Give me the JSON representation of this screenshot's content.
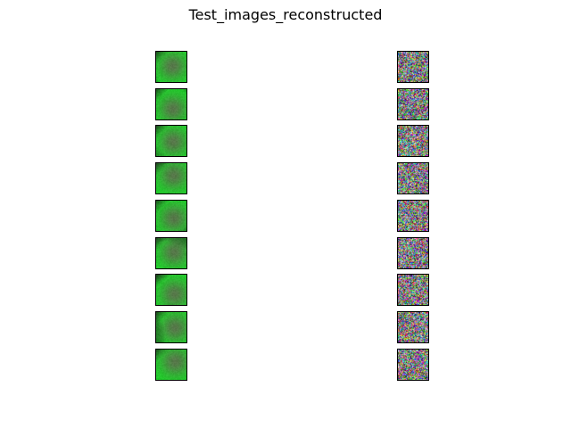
{
  "figure": {
    "title": "Test_images_reconstructed"
  },
  "grid": {
    "rows": 9,
    "columns": [
      {
        "kind": "original-cell-image",
        "palette": {
          "background": "#1b3a1b",
          "membrane": "#1fd02a",
          "nucleus": "#6a5a55"
        }
      },
      {
        "kind": "reconstructed-noise-image",
        "palette": {
          "base": "#7f7f7f"
        }
      }
    ]
  }
}
